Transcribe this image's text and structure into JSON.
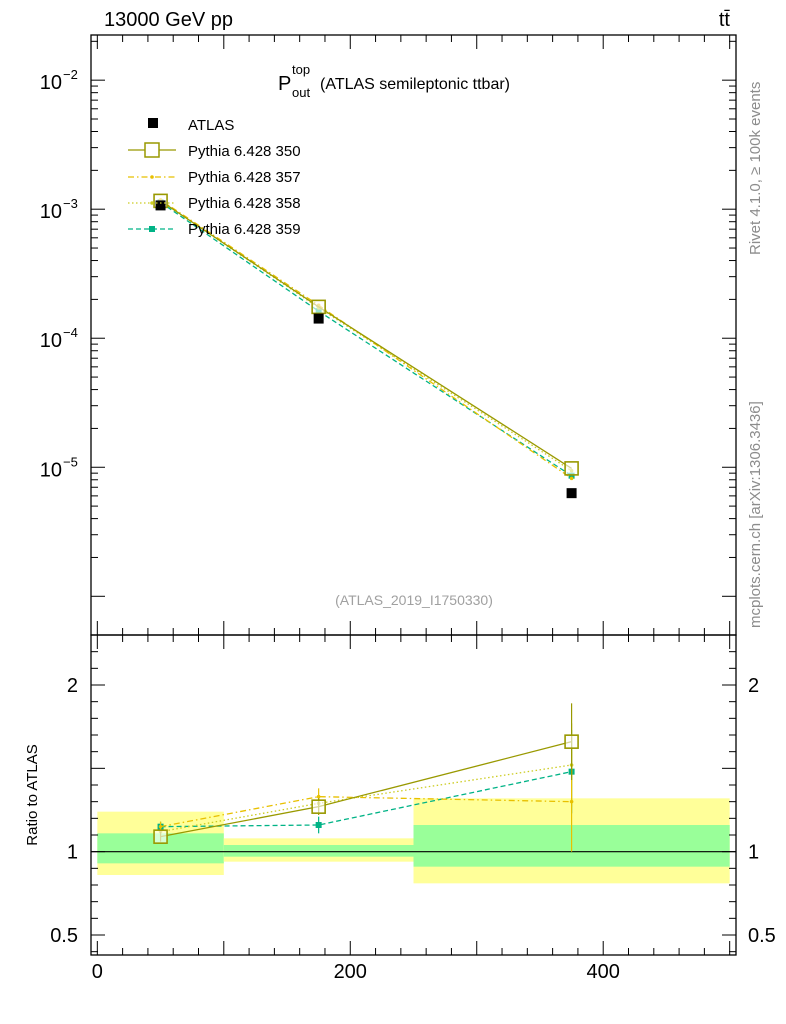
{
  "header": {
    "left": "13000 GeV pp",
    "right": "tt̄"
  },
  "side_labels": {
    "top": "Rivet 4.1.0, ≥ 100k events",
    "bottom": "mcplots.cern.ch [arXiv:1306.3436]"
  },
  "chart_data": {
    "type": "line",
    "title_main": "P",
    "title_sup": "top",
    "title_sub": "out",
    "title_rest": "(ATLAS semileptonic ttbar)",
    "analysis_id": "(ATLAS_2019_I1750330)",
    "x_range": [
      -5,
      505
    ],
    "upper_y_range_log10": [
      -6.3,
      -1.65
    ],
    "ratio_y_range": [
      0.38,
      2.3
    ],
    "upper_y_ticks": [
      {
        "exp": -2,
        "label_base": "10",
        "label_exp": "−2"
      },
      {
        "exp": -3,
        "label_base": "10",
        "label_exp": "−3"
      },
      {
        "exp": -4,
        "label_base": "10",
        "label_exp": "−4"
      },
      {
        "exp": -5,
        "label_base": "10",
        "label_exp": "−5"
      }
    ],
    "ratio_y_ticks": [
      {
        "value": 2,
        "label": "2"
      },
      {
        "value": 1,
        "label": "1"
      },
      {
        "value": 0.5,
        "label": "0.5"
      }
    ],
    "x_ticks": [
      {
        "value": 0,
        "label": "0"
      },
      {
        "value": 200,
        "label": "200"
      },
      {
        "value": 400,
        "label": "400"
      }
    ],
    "ylabel_ratio": "Ratio to ATLAS",
    "bins": [
      {
        "low": 0,
        "high": 100,
        "center": 50
      },
      {
        "low": 100,
        "high": 250,
        "center": 175
      },
      {
        "low": 250,
        "high": 500,
        "center": 375
      }
    ],
    "data": {
      "name": "ATLAS",
      "color": "#000000",
      "values": [
        0.00107,
        0.000142,
        6.3e-06
      ],
      "band_stat": [
        [
          0.93,
          1.11
        ],
        [
          0.97,
          1.04
        ],
        [
          0.91,
          1.16
        ]
      ],
      "band_total": [
        [
          0.86,
          1.24
        ],
        [
          0.94,
          1.08
        ],
        [
          0.81,
          1.32
        ]
      ]
    },
    "series": [
      {
        "name": "Pythia 6.428 350",
        "color": "#999900",
        "style": "solid",
        "marker": "open-square",
        "values": [
          0.00116,
          0.000175,
          9.8e-06
        ],
        "ratio": [
          1.09,
          1.27,
          1.66
        ],
        "ratio_err": [
          0.03,
          0.05,
          0.23
        ]
      },
      {
        "name": "Pythia 6.428 357",
        "color": "#e8c000",
        "style": "dashdot",
        "marker": "dot",
        "values": [
          0.00118,
          0.00018,
          8.2e-06
        ],
        "ratio": [
          1.15,
          1.33,
          1.3
        ],
        "ratio_err": [
          0.03,
          0.05,
          0.3
        ]
      },
      {
        "name": "Pythia 6.428 358",
        "color": "#cccc22",
        "style": "dotted",
        "marker": "dot",
        "values": [
          0.00116,
          0.000172,
          9.4e-06
        ],
        "ratio": [
          1.12,
          1.29,
          1.52
        ],
        "ratio_err": [
          0.03,
          0.05,
          0.25
        ]
      },
      {
        "name": "Pythia 6.428 359",
        "color": "#00b386",
        "style": "dashed",
        "marker": "filled-square",
        "values": [
          0.00113,
          0.000162,
          8.6e-06
        ],
        "ratio": [
          1.15,
          1.16,
          1.48
        ],
        "ratio_err": [
          0.03,
          0.05,
          0.25
        ]
      }
    ]
  }
}
